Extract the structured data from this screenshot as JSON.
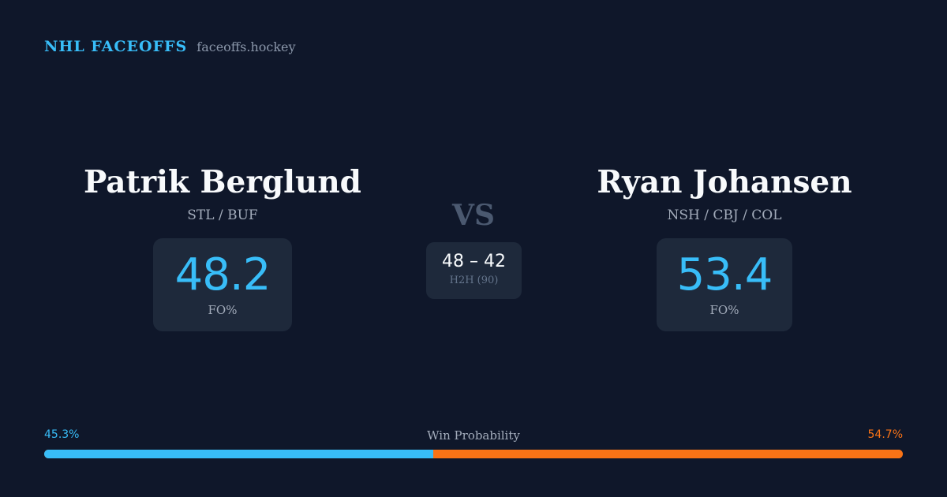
{
  "brand": {
    "name": "NHL FACEOFFS",
    "site": "faceoffs.hockey"
  },
  "players": [
    {
      "name": "Patrik Berglund",
      "teams": "STL / BUF",
      "fo_pct": "48.2",
      "fo_label": "FO%"
    },
    {
      "name": "Ryan Johansen",
      "teams": "NSH / CBJ / COL",
      "fo_pct": "53.4",
      "fo_label": "FO%"
    }
  ],
  "vs_label": "VS",
  "h2h": {
    "score": "48 – 42",
    "label": "H2H (90)"
  },
  "win_probability": {
    "title": "Win Probability",
    "left_label": "45.3%",
    "right_label": "54.7%",
    "left_value": 45.3,
    "right_value": 54.7,
    "left_color": "#38bdf8",
    "right_color": "#f97316"
  }
}
